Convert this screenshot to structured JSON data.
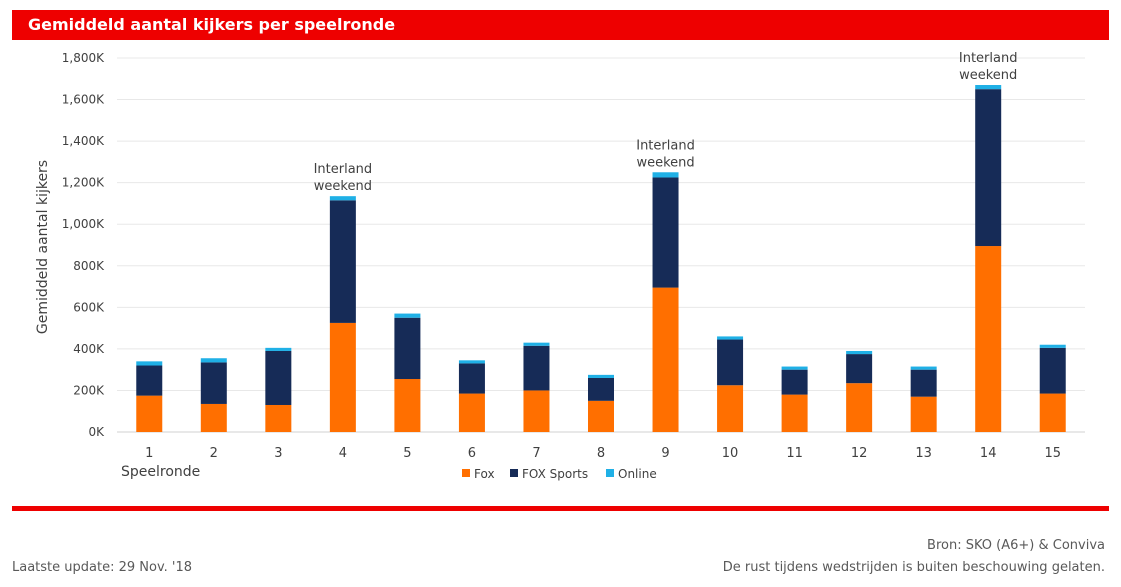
{
  "header": {
    "title": "Gemiddeld aantal kijkers per speelronde"
  },
  "chart_data": {
    "type": "bar",
    "stacked": true,
    "categories": [
      "1",
      "2",
      "3",
      "4",
      "5",
      "6",
      "7",
      "8",
      "9",
      "10",
      "11",
      "12",
      "13",
      "14",
      "15"
    ],
    "series": [
      {
        "name": "Fox",
        "color": "#ff6f00",
        "values": [
          175,
          135,
          130,
          525,
          255,
          185,
          200,
          150,
          695,
          225,
          180,
          235,
          170,
          895,
          185
        ]
      },
      {
        "name": "FOX Sports",
        "color": "#162b57",
        "values": [
          145,
          200,
          260,
          590,
          295,
          145,
          215,
          110,
          530,
          220,
          120,
          140,
          130,
          755,
          220
        ]
      },
      {
        "name": "Online",
        "color": "#1fb0e6",
        "values": [
          20,
          20,
          15,
          20,
          20,
          15,
          15,
          15,
          25,
          15,
          15,
          15,
          15,
          20,
          15
        ]
      }
    ],
    "ylim": [
      0,
      1800
    ],
    "yticks": [
      "0K",
      "200K",
      "400K",
      "600K",
      "800K",
      "1,000K",
      "1,200K",
      "1,400K",
      "1,600K",
      "1,800K"
    ],
    "ylabel": "Gemiddeld aantal kijkers",
    "xlabel": "Speelronde",
    "grid": true,
    "legend_position": "bottom",
    "annotations": [
      {
        "category": "4",
        "lines": [
          "Interland",
          "weekend"
        ]
      },
      {
        "category": "9",
        "lines": [
          "Interland",
          "weekend"
        ]
      },
      {
        "category": "14",
        "lines": [
          "Interland",
          "weekend"
        ]
      }
    ]
  },
  "footer": {
    "source": "Bron: SKO (A6+) & Conviva",
    "update": "Laatste update: 29 Nov. '18",
    "note": "De rust tijdens wedstrijden is buiten beschouwing gelaten."
  }
}
